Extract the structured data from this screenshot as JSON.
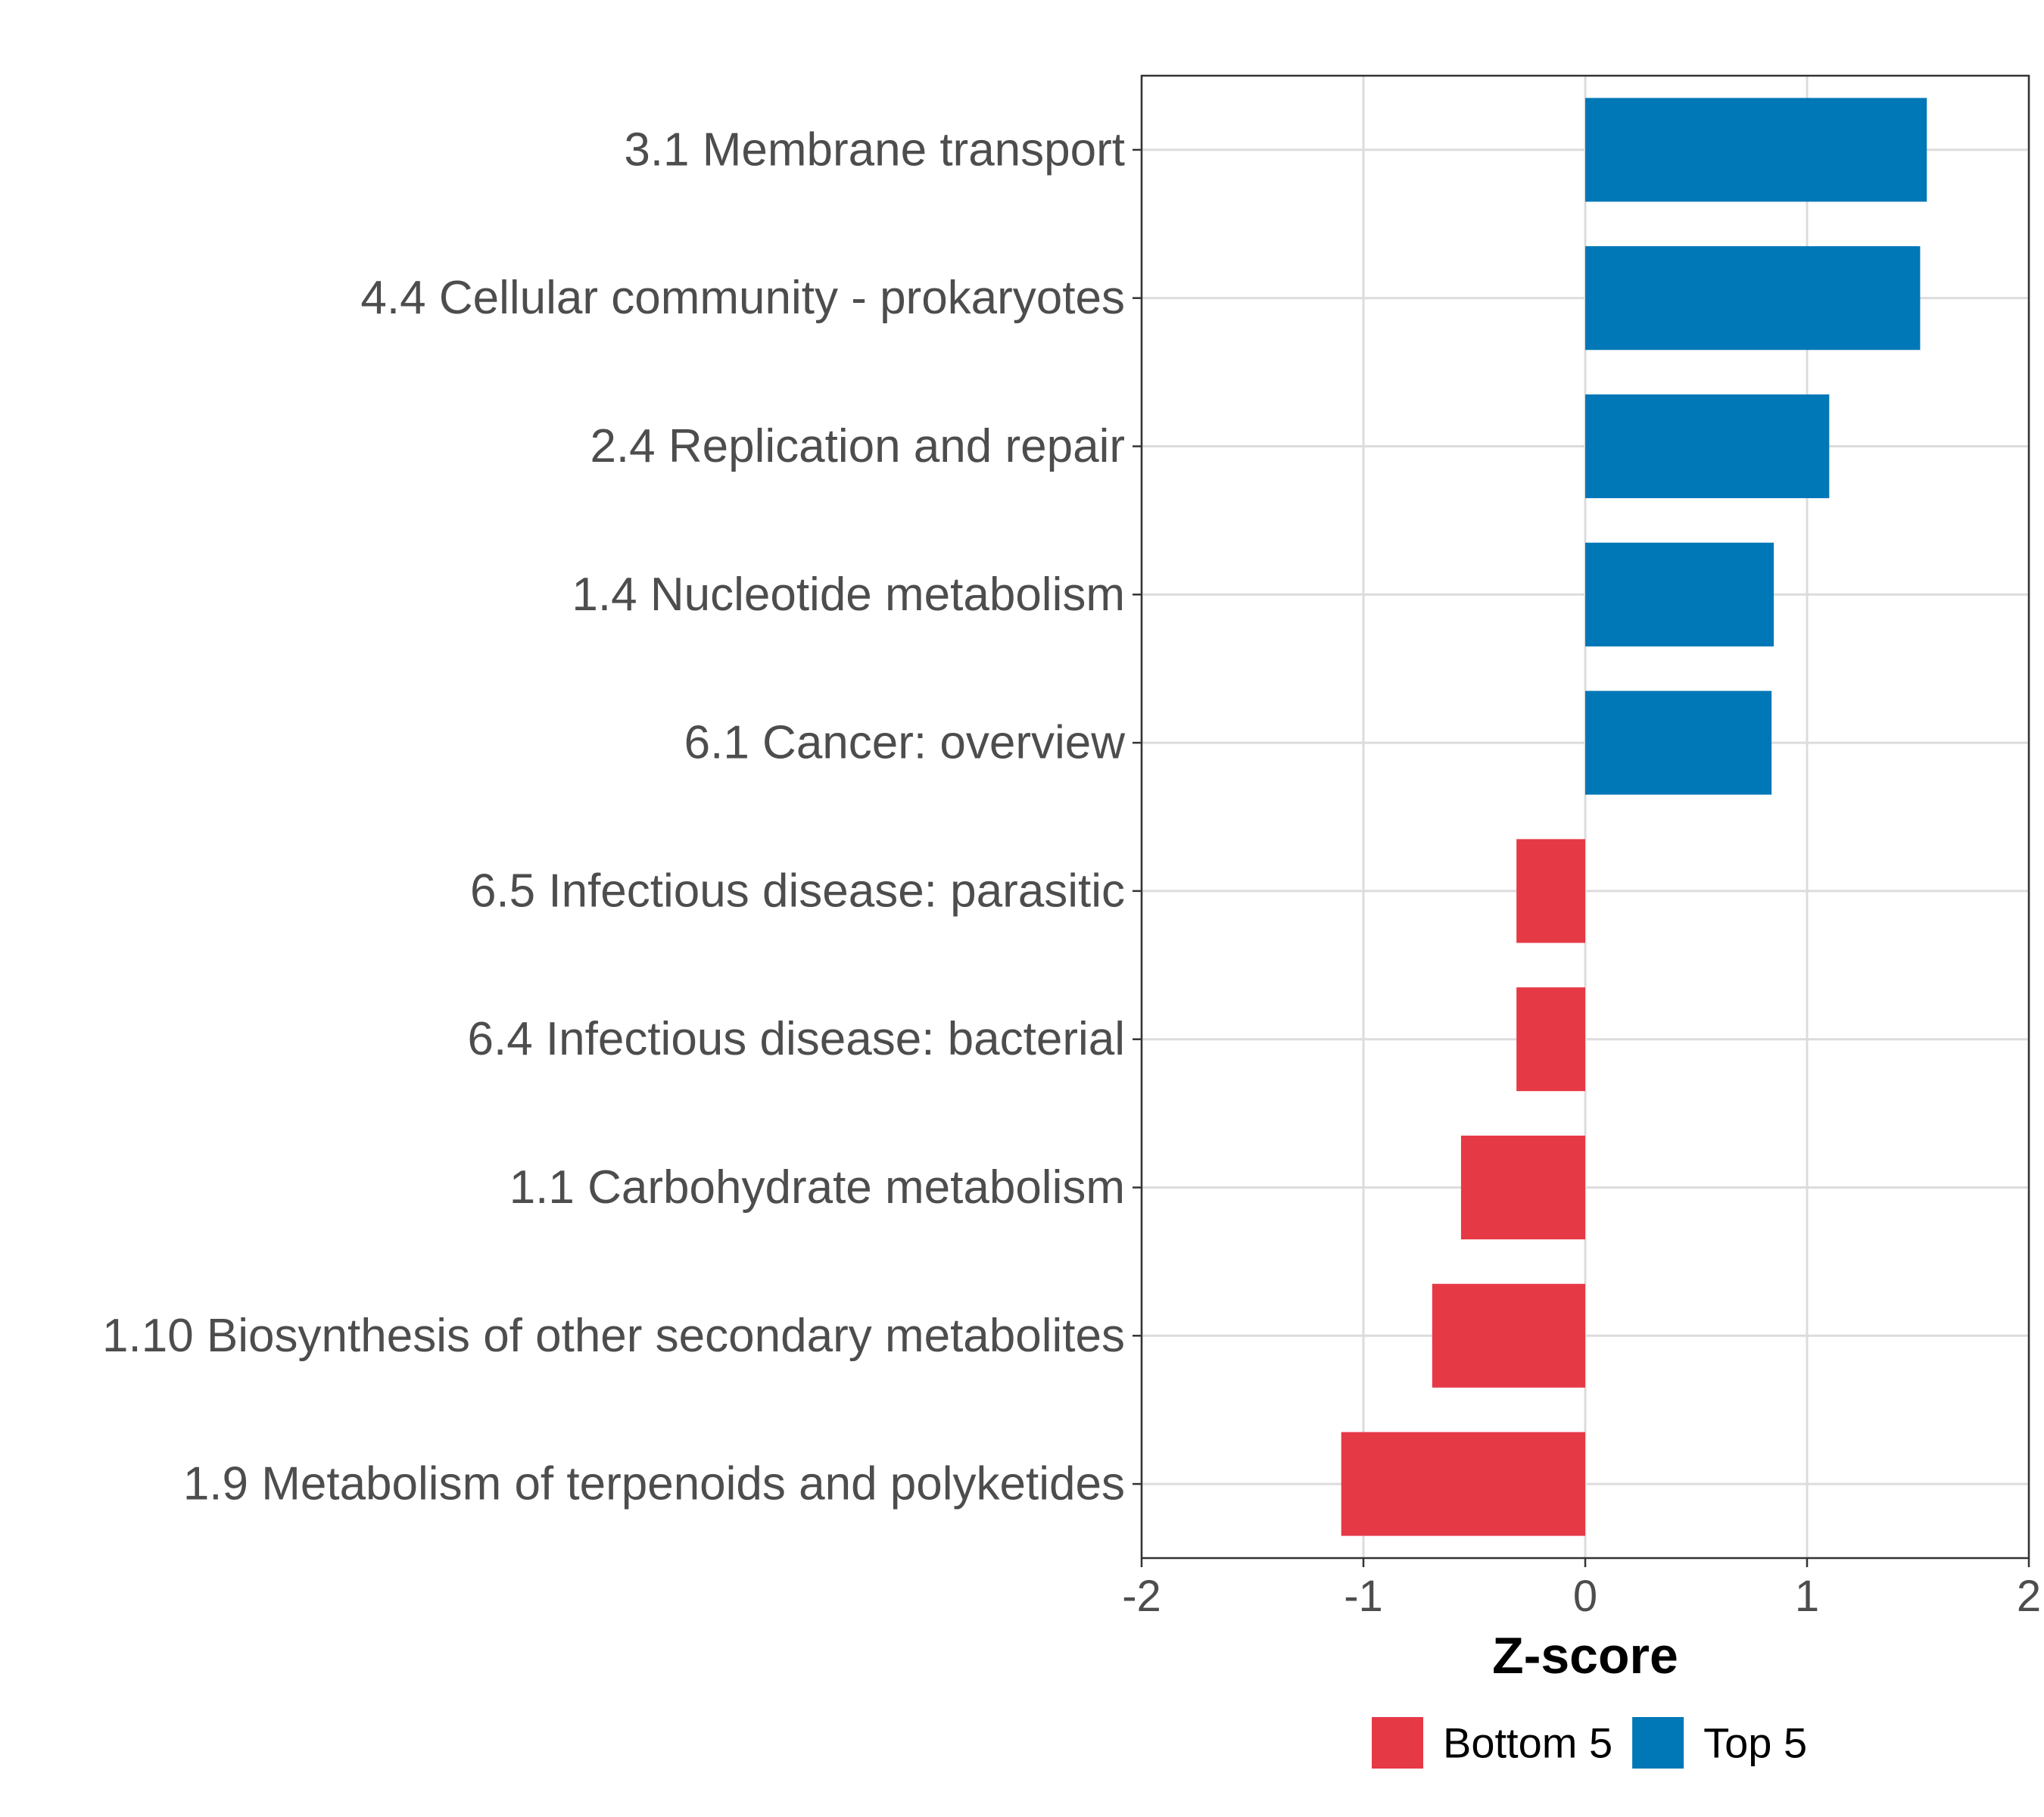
{
  "chart_data": {
    "type": "bar",
    "orientation": "horizontal",
    "title": "",
    "xlabel": "Z-score",
    "ylabel": "",
    "xlim": [
      -2,
      2
    ],
    "xticks": [
      -2,
      -1,
      0,
      1,
      2
    ],
    "grid": true,
    "legend_position": "bottom",
    "categories": [
      "3.1 Membrane transport",
      "4.4 Cellular community - prokaryotes",
      "2.4 Replication and repair",
      "1.4 Nucleotide metabolism",
      "6.1 Cancer: overview",
      "6.5 Infectious disease: parasitic",
      "6.4 Infectious disease: bacterial",
      "1.1 Carbohydrate metabolism",
      "1.10 Biosynthesis of other secondary metabolites",
      "1.9 Metabolism of terpenoids and polyketides"
    ],
    "values": [
      1.54,
      1.51,
      1.1,
      0.85,
      0.84,
      -0.31,
      -0.31,
      -0.56,
      -0.69,
      -1.1
    ],
    "groups": [
      "Top 5",
      "Top 5",
      "Top 5",
      "Top 5",
      "Top 5",
      "Bottom 5",
      "Bottom 5",
      "Bottom 5",
      "Bottom 5",
      "Bottom 5"
    ],
    "legend": [
      {
        "name": "Bottom 5",
        "color": "#e63946"
      },
      {
        "name": "Top 5",
        "color": "#0077b6"
      }
    ]
  }
}
